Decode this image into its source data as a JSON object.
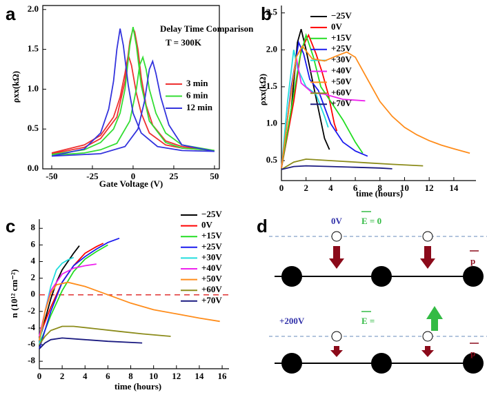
{
  "chart_data": [
    {
      "type": "line",
      "panel_label": "a",
      "xlabel": "Gate Voltage (V)",
      "ylabel": "ρxx(kΩ)",
      "annotations": [
        "Delay Time Comparison",
        "T = 300K"
      ],
      "xlim": [
        -55.5,
        53
      ],
      "ylim": [
        0,
        2.05
      ],
      "xticks": [
        -50,
        -25,
        0,
        25,
        50
      ],
      "yticks": [
        {
          "value": 0,
          "label": "0.0"
        },
        0.5,
        {
          "value": 1,
          "label": "1.0"
        },
        1.5,
        {
          "value": 2,
          "label": "2.0"
        }
      ],
      "series": [
        {
          "name": "3 min",
          "color": "#ee3030",
          "x": [
            -50,
            -30,
            -20,
            -12,
            -8,
            -5,
            -3,
            -1,
            2,
            5,
            10,
            20,
            30,
            50,
            30,
            20,
            12,
            8,
            5,
            3,
            1,
            0,
            -2,
            -5,
            -10,
            -20,
            -30,
            -50
          ],
          "values": [
            0.2,
            0.3,
            0.42,
            0.65,
            0.9,
            1.2,
            1.43,
            1.3,
            0.95,
            0.7,
            0.45,
            0.3,
            0.26,
            0.23,
            0.28,
            0.35,
            0.55,
            0.8,
            1.15,
            1.5,
            1.72,
            1.76,
            1.6,
            1.1,
            0.65,
            0.38,
            0.27,
            0.19
          ]
        },
        {
          "name": "6 min",
          "color": "#33dd33",
          "x": [
            -50,
            -30,
            -20,
            -12,
            -8,
            -5,
            -2,
            0,
            2,
            5,
            10,
            20,
            30,
            50,
            30,
            20,
            14,
            10,
            8,
            6,
            4,
            2,
            -2,
            -10,
            -20,
            -30,
            -50
          ],
          "values": [
            0.18,
            0.24,
            0.33,
            0.5,
            0.7,
            1.0,
            1.55,
            1.78,
            1.55,
            1.05,
            0.6,
            0.33,
            0.26,
            0.23,
            0.3,
            0.45,
            0.7,
            1.0,
            1.25,
            1.4,
            1.3,
            1.0,
            0.6,
            0.32,
            0.24,
            0.2,
            0.17
          ]
        },
        {
          "name": "12 min",
          "color": "#3333dd",
          "x": [
            -50,
            -30,
            -20,
            -15,
            -12,
            -10,
            -8,
            -6,
            -3,
            0,
            5,
            15,
            30,
            50,
            30,
            22,
            17,
            14,
            12,
            10,
            7,
            3,
            -5,
            -20,
            -50
          ],
          "values": [
            0.16,
            0.25,
            0.45,
            0.75,
            1.1,
            1.5,
            1.76,
            1.55,
            1.05,
            0.7,
            0.45,
            0.28,
            0.23,
            0.22,
            0.3,
            0.55,
            0.9,
            1.2,
            1.35,
            1.25,
            0.85,
            0.5,
            0.28,
            0.19,
            0.16
          ]
        }
      ]
    },
    {
      "type": "line",
      "panel_label": "b",
      "xlabel": "time (hours)",
      "ylabel": "ρxx(kΩ)",
      "xlim": [
        0,
        15.8
      ],
      "ylim": [
        0.23,
        2.6
      ],
      "xticks": [
        0,
        2,
        4,
        6,
        8,
        10,
        12,
        14
      ],
      "yticks": [
        0.5,
        {
          "value": 1,
          "label": "1.0"
        },
        1.5,
        {
          "value": 2,
          "label": "2.0"
        },
        2.5
      ],
      "series": [
        {
          "name": "−25V",
          "color": "#000000",
          "x": [
            0,
            0.8,
            1.3,
            1.6,
            2,
            2.5,
            3,
            3.5,
            3.9
          ],
          "values": [
            0.4,
            1.2,
            2.1,
            2.28,
            2.0,
            1.6,
            1.2,
            0.8,
            0.65
          ]
        },
        {
          "name": "0V",
          "color": "#ff0000",
          "x": [
            0,
            1,
            1.6,
            2.2,
            2.8,
            3.3,
            3.8,
            4.3,
            4.5
          ],
          "values": [
            0.4,
            1.3,
            2.0,
            2.2,
            1.95,
            1.7,
            1.4,
            1.0,
            0.9
          ]
        },
        {
          "name": "+15V",
          "color": "#22dd22",
          "x": [
            0,
            1,
            1.5,
            2,
            2.6,
            3.2,
            4,
            5,
            6,
            6.6
          ],
          "values": [
            0.4,
            1.4,
            1.9,
            2.2,
            1.9,
            1.5,
            1.3,
            1.05,
            0.75,
            0.6
          ]
        },
        {
          "name": "+25V",
          "color": "#1a1aee",
          "x": [
            0,
            0.8,
            1.4,
            1.8,
            2.3,
            3,
            4,
            5,
            6,
            7
          ],
          "values": [
            0.4,
            1.5,
            2.1,
            1.95,
            1.6,
            1.45,
            1.0,
            0.75,
            0.63,
            0.56
          ]
        },
        {
          "name": "+30V",
          "color": "#22dddd",
          "x": [
            0,
            0.5,
            1,
            1.3,
            2,
            2.8,
            3.5,
            3.8
          ],
          "values": [
            0.4,
            1.3,
            2.0,
            1.75,
            1.5,
            1.4,
            1.1,
            0.95
          ]
        },
        {
          "name": "+40V",
          "color": "#ee22ee",
          "x": [
            0,
            0.6,
            1.2,
            1.6,
            2.5,
            3.5,
            5,
            6.8
          ],
          "values": [
            0.4,
            1.2,
            1.9,
            1.55,
            1.42,
            1.4,
            1.33,
            1.31
          ]
        },
        {
          "name": "+50V",
          "color": "#ff8c1a",
          "x": [
            0,
            0.6,
            1.2,
            1.7,
            2.5,
            3.5,
            4.5,
            5.3,
            6,
            7,
            8,
            9,
            10,
            11,
            12,
            13,
            14,
            15.3
          ],
          "values": [
            0.4,
            1.2,
            1.9,
            2.05,
            1.88,
            1.85,
            1.92,
            1.97,
            1.9,
            1.6,
            1.3,
            1.1,
            0.95,
            0.85,
            0.77,
            0.71,
            0.66,
            0.6
          ]
        },
        {
          "name": "+60V",
          "color": "#8b8b1a",
          "x": [
            0,
            1,
            2,
            3,
            5,
            7,
            9,
            11.5
          ],
          "values": [
            0.38,
            0.48,
            0.52,
            0.51,
            0.49,
            0.47,
            0.45,
            0.43
          ]
        },
        {
          "name": "+70V",
          "color": "#1a1a80",
          "x": [
            0,
            1,
            2,
            4,
            6,
            8,
            9
          ],
          "values": [
            0.38,
            0.42,
            0.43,
            0.42,
            0.41,
            0.4,
            0.39
          ]
        }
      ]
    },
    {
      "type": "line",
      "panel_label": "c",
      "xlabel": "time (hours)",
      "ylabel": "n (10¹² cm⁻²)",
      "xlim": [
        0,
        16.6
      ],
      "ylim": [
        -8.9,
        9.1
      ],
      "xticks": [
        0,
        2,
        4,
        6,
        8,
        10,
        12,
        14,
        16
      ],
      "yticks": [
        -8,
        -6,
        -4,
        -2,
        0,
        2,
        4,
        6,
        8
      ],
      "reference_line": {
        "value": 0,
        "color": "#e03030"
      },
      "series": [
        {
          "name": "−25V",
          "color": "#000000",
          "x": [
            0,
            0.5,
            1,
            1.5,
            2,
            2.5,
            3,
            3.5
          ],
          "values": [
            -5.5,
            -3,
            -0.5,
            1.5,
            3,
            4,
            5,
            5.9
          ]
        },
        {
          "name": "0V",
          "color": "#ff0000",
          "x": [
            0,
            1,
            2,
            3,
            4,
            5,
            5.6
          ],
          "values": [
            -5,
            -1.5,
            1.5,
            3.5,
            5,
            5.8,
            6.2
          ]
        },
        {
          "name": "+15V",
          "color": "#22dd22",
          "x": [
            0,
            1,
            2,
            3,
            4,
            5,
            6
          ],
          "values": [
            -6,
            -2.5,
            0.5,
            2.8,
            4.3,
            5.2,
            6
          ]
        },
        {
          "name": "+25V",
          "color": "#1a1aee",
          "x": [
            0,
            1,
            2,
            3,
            4,
            5,
            6,
            7
          ],
          "values": [
            -6.5,
            -2,
            1.5,
            3.5,
            4.6,
            5.5,
            6.3,
            6.8
          ]
        },
        {
          "name": "+30V",
          "color": "#22dddd",
          "x": [
            0,
            0.5,
            1,
            1.5,
            2,
            2.5,
            3
          ],
          "values": [
            -6,
            -2,
            1,
            3,
            3.8,
            4.2,
            4.5
          ]
        },
        {
          "name": "+40V",
          "color": "#ee22ee",
          "x": [
            0,
            0.5,
            1,
            2,
            3,
            4,
            5
          ],
          "values": [
            -5,
            -2,
            0.5,
            2.5,
            3.2,
            3.5,
            3.7
          ]
        },
        {
          "name": "+50V",
          "color": "#ff8c1a",
          "x": [
            0,
            0.5,
            1,
            1.5,
            2.5,
            4,
            6,
            8,
            10,
            12,
            14,
            15.8
          ],
          "values": [
            -5.5,
            -2,
            0.2,
            1.2,
            1.5,
            1,
            0,
            -1,
            -1.8,
            -2.3,
            -2.8,
            -3.2
          ]
        },
        {
          "name": "+60V",
          "color": "#8b8b1a",
          "x": [
            0,
            0.5,
            1,
            2,
            3,
            5,
            7,
            9,
            11.5
          ],
          "values": [
            -6,
            -5,
            -4.3,
            -3.8,
            -3.8,
            -4.1,
            -4.4,
            -4.7,
            -5
          ]
        },
        {
          "name": "+70V",
          "color": "#1a1a80",
          "x": [
            0,
            0.5,
            1,
            2,
            4,
            6,
            9
          ],
          "values": [
            -6.5,
            -5.8,
            -5.4,
            -5.2,
            -5.4,
            -5.6,
            -5.8
          ]
        }
      ]
    }
  ],
  "diagram": {
    "panel_label": "d",
    "top": {
      "voltage": "0V",
      "field": "E = 0",
      "dipole": "p"
    },
    "bottom": {
      "voltage": "+200V",
      "field": "E =",
      "dipole": "p"
    }
  }
}
